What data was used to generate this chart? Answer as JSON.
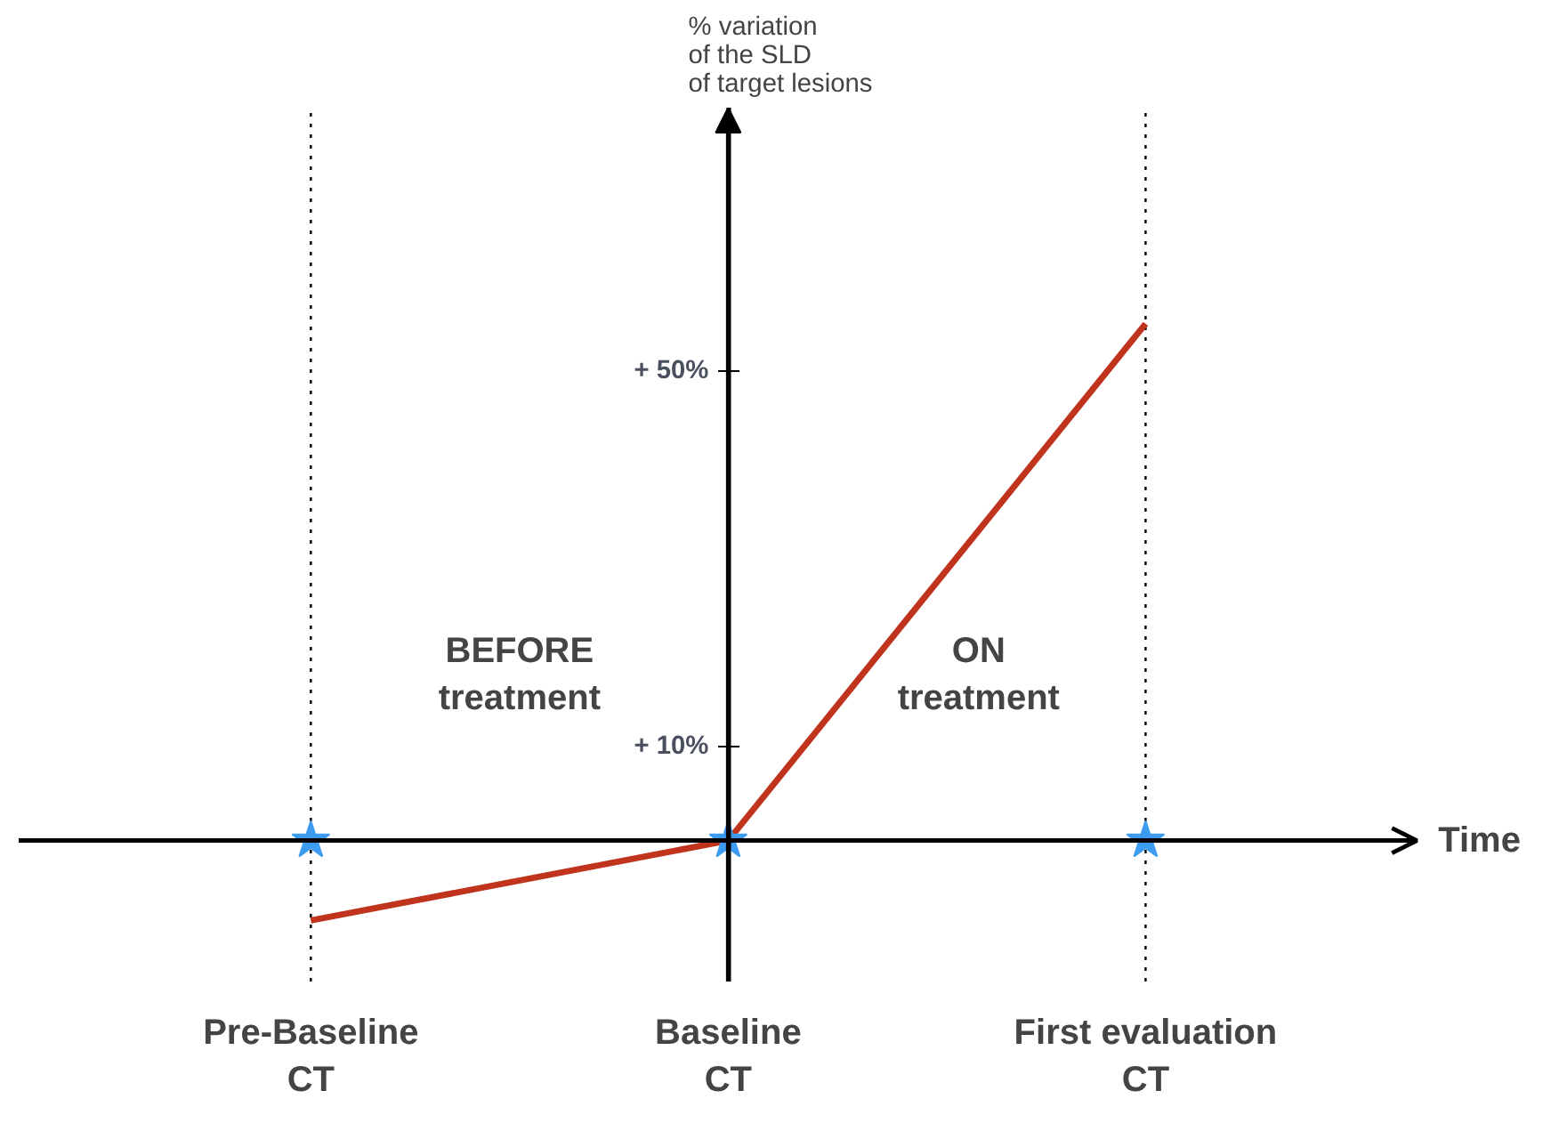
{
  "chart_data": {
    "type": "line",
    "ylabel": "% variation\nof the SLD\nof target lesions",
    "xlabel": "Time",
    "categories": [
      "Pre-Baseline\nCT",
      "Baseline\nCT",
      "First evaluation\nCT"
    ],
    "series": [
      {
        "color": "#c0331c",
        "values": [
          -8.5,
          0,
          55
        ],
        "marker": "none"
      },
      {
        "type": "scatter",
        "color": "#3d9bf0",
        "values": [
          0,
          0,
          0
        ],
        "marker": "star"
      }
    ],
    "ylim": [
      -15,
      78
    ],
    "yticks": [
      {
        "value": 10,
        "label": "+ 10%"
      },
      {
        "value": 50,
        "label": "+ 50%"
      }
    ],
    "ref_lines": [
      {
        "axis": "x",
        "value": "Pre-Baseline\nCT",
        "line_style": "dotted",
        "color": "#000000"
      },
      {
        "axis": "x",
        "value": "First evaluation\nCT",
        "line_style": "dotted",
        "color": "#000000"
      }
    ],
    "annotations": [
      "BEFORE\ntreatment",
      "ON\ntreatment"
    ],
    "grid": false
  }
}
